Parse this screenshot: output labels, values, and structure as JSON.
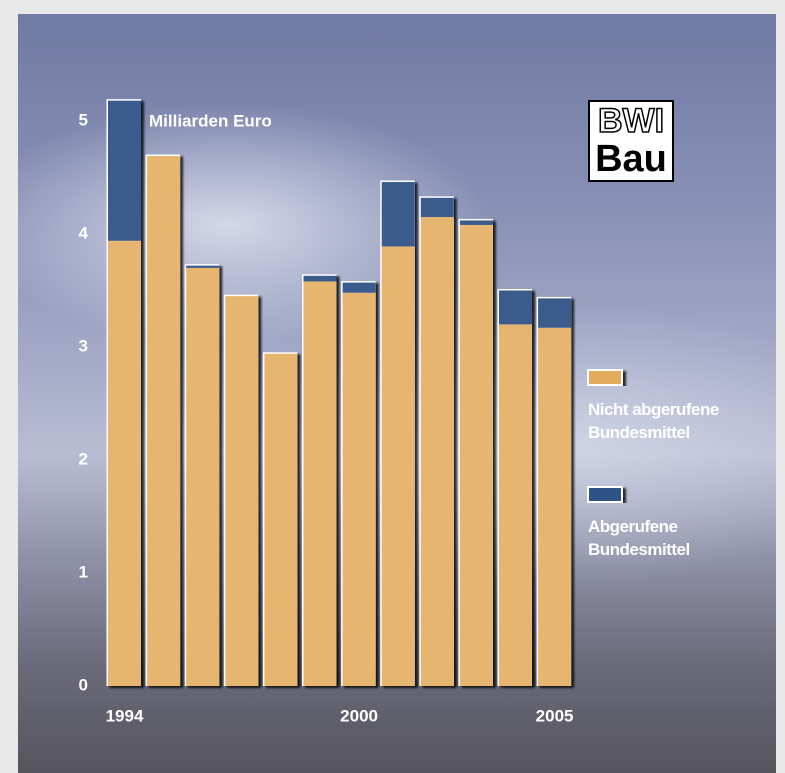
{
  "chart_data": {
    "type": "bar",
    "stacked": true,
    "annotation": "Milliarden Euro",
    "categories": [
      "1994",
      null,
      null,
      null,
      null,
      null,
      "2000",
      null,
      null,
      null,
      null,
      "2005"
    ],
    "series": [
      {
        "name": "Nicht abgerufene Bundesmittel",
        "color": "#e3ab5c",
        "values": [
          3.94,
          4.69,
          3.7,
          3.45,
          2.94,
          3.58,
          3.48,
          3.89,
          4.15,
          4.08,
          3.2,
          3.17
        ]
      },
      {
        "name": "Abgerufene Bundesmittel",
        "color": "#2f5286",
        "values": [
          1.24,
          0,
          0.02,
          0,
          0,
          0.05,
          0.09,
          0.57,
          0.17,
          0.04,
          0.3,
          0.26
        ]
      }
    ],
    "ylim": [
      0,
      5
    ],
    "yticks": [
      0,
      1,
      2,
      3,
      4,
      5
    ],
    "grid": false
  },
  "logo": {
    "line1": "BWI",
    "line2": "Bau"
  }
}
